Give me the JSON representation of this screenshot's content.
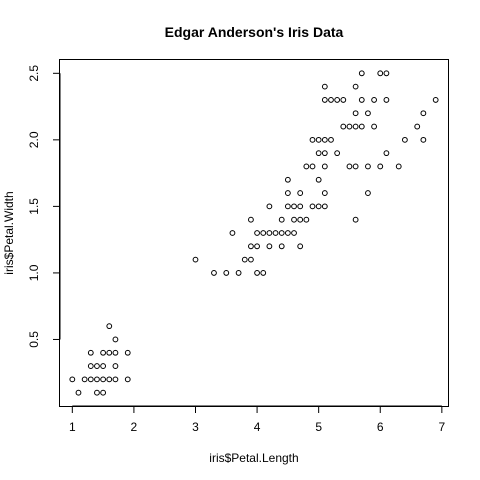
{
  "chart_data": {
    "type": "scatter",
    "title": "Edgar Anderson's Iris Data",
    "xlabel": "iris$Petal.Length",
    "ylabel": "iris$Petal.Width",
    "xlim": [
      0.8,
      7.1
    ],
    "ylim": [
      0.0,
      2.6
    ],
    "xticks": [
      1,
      2,
      3,
      4,
      5,
      6,
      7
    ],
    "yticks": [
      0.5,
      1.0,
      1.5,
      2.0,
      2.5
    ],
    "grid": false,
    "points": [
      [
        1.0,
        0.2
      ],
      [
        1.1,
        0.1
      ],
      [
        1.2,
        0.2
      ],
      [
        1.3,
        0.2
      ],
      [
        1.3,
        0.3
      ],
      [
        1.3,
        0.4
      ],
      [
        1.4,
        0.1
      ],
      [
        1.4,
        0.2
      ],
      [
        1.4,
        0.3
      ],
      [
        1.5,
        0.1
      ],
      [
        1.5,
        0.2
      ],
      [
        1.5,
        0.3
      ],
      [
        1.5,
        0.4
      ],
      [
        1.6,
        0.2
      ],
      [
        1.6,
        0.4
      ],
      [
        1.6,
        0.6
      ],
      [
        1.7,
        0.2
      ],
      [
        1.7,
        0.3
      ],
      [
        1.7,
        0.4
      ],
      [
        1.7,
        0.5
      ],
      [
        1.9,
        0.2
      ],
      [
        1.9,
        0.4
      ],
      [
        3.0,
        1.1
      ],
      [
        3.3,
        1.0
      ],
      [
        3.5,
        1.0
      ],
      [
        3.6,
        1.3
      ],
      [
        3.7,
        1.0
      ],
      [
        3.8,
        1.1
      ],
      [
        3.9,
        1.1
      ],
      [
        3.9,
        1.2
      ],
      [
        3.9,
        1.4
      ],
      [
        4.0,
        1.0
      ],
      [
        4.0,
        1.2
      ],
      [
        4.0,
        1.3
      ],
      [
        4.1,
        1.0
      ],
      [
        4.1,
        1.3
      ],
      [
        4.2,
        1.2
      ],
      [
        4.2,
        1.3
      ],
      [
        4.2,
        1.5
      ],
      [
        4.3,
        1.3
      ],
      [
        4.4,
        1.2
      ],
      [
        4.4,
        1.3
      ],
      [
        4.4,
        1.4
      ],
      [
        4.5,
        1.3
      ],
      [
        4.5,
        1.5
      ],
      [
        4.5,
        1.6
      ],
      [
        4.5,
        1.7
      ],
      [
        4.6,
        1.3
      ],
      [
        4.6,
        1.4
      ],
      [
        4.6,
        1.5
      ],
      [
        4.7,
        1.2
      ],
      [
        4.7,
        1.4
      ],
      [
        4.7,
        1.5
      ],
      [
        4.7,
        1.6
      ],
      [
        4.8,
        1.4
      ],
      [
        4.8,
        1.8
      ],
      [
        4.9,
        1.5
      ],
      [
        4.9,
        1.8
      ],
      [
        4.9,
        2.0
      ],
      [
        5.0,
        1.5
      ],
      [
        5.0,
        1.7
      ],
      [
        5.0,
        2.0
      ],
      [
        5.0,
        1.9
      ],
      [
        5.1,
        1.5
      ],
      [
        5.1,
        1.6
      ],
      [
        5.1,
        1.8
      ],
      [
        5.1,
        1.9
      ],
      [
        5.1,
        2.0
      ],
      [
        5.1,
        2.3
      ],
      [
        5.1,
        2.4
      ],
      [
        5.2,
        2.0
      ],
      [
        5.2,
        2.3
      ],
      [
        5.3,
        1.9
      ],
      [
        5.3,
        2.3
      ],
      [
        5.4,
        2.1
      ],
      [
        5.4,
        2.3
      ],
      [
        5.5,
        1.8
      ],
      [
        5.5,
        2.1
      ],
      [
        5.6,
        1.4
      ],
      [
        5.6,
        1.8
      ],
      [
        5.6,
        2.1
      ],
      [
        5.6,
        2.2
      ],
      [
        5.6,
        2.4
      ],
      [
        5.7,
        2.1
      ],
      [
        5.7,
        2.3
      ],
      [
        5.7,
        2.5
      ],
      [
        5.8,
        1.6
      ],
      [
        5.8,
        1.8
      ],
      [
        5.8,
        2.2
      ],
      [
        5.9,
        2.1
      ],
      [
        5.9,
        2.3
      ],
      [
        6.0,
        1.8
      ],
      [
        6.0,
        2.5
      ],
      [
        6.1,
        1.9
      ],
      [
        6.1,
        2.3
      ],
      [
        6.1,
        2.5
      ],
      [
        6.3,
        1.8
      ],
      [
        6.4,
        2.0
      ],
      [
        6.6,
        2.1
      ],
      [
        6.7,
        2.0
      ],
      [
        6.7,
        2.2
      ],
      [
        6.9,
        2.3
      ]
    ]
  }
}
